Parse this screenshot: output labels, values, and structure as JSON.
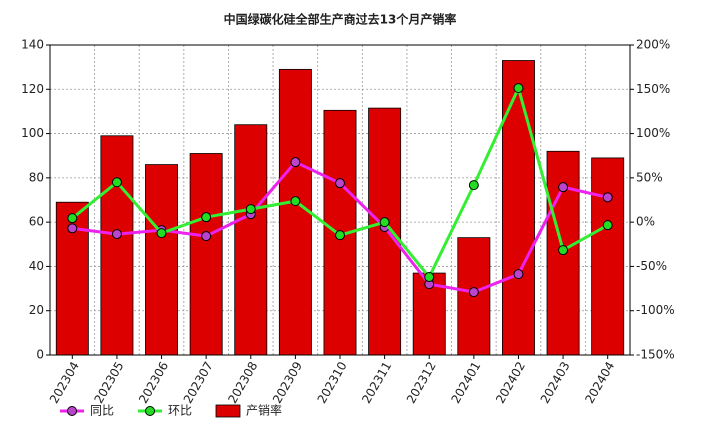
{
  "chart_data": {
    "type": "bar",
    "title": "中国绿碳化硅全部生产商过去13个月产销率",
    "categories": [
      "202304",
      "202305",
      "202306",
      "202307",
      "202308",
      "202309",
      "202310",
      "202311",
      "202312",
      "202401",
      "202402",
      "202403",
      "202404"
    ],
    "series": [
      {
        "name": "同比",
        "type": "line",
        "axis": "y2",
        "color": "#ee22ee",
        "marker": "#bb44cc",
        "values": [
          -7,
          -13.5,
          -9,
          -15.8,
          9,
          67.7,
          44,
          -5.6,
          -70,
          -79,
          -58.7,
          39.5,
          28
        ]
      },
      {
        "name": "环比",
        "type": "line",
        "axis": "y2",
        "color": "#33ee33",
        "marker": "#22dd22",
        "values": [
          4.5,
          45,
          -12.4,
          5.6,
          14.7,
          23.7,
          -14.7,
          0,
          -62,
          41.8,
          151.3,
          -31.6,
          -3.4
        ]
      },
      {
        "name": "产销率",
        "type": "bar",
        "color": "#dd0000",
        "values": [
          69,
          99,
          86,
          91,
          104,
          129,
          110.5,
          111.5,
          37,
          53,
          133,
          92,
          89
        ]
      }
    ],
    "ylim": [
      0,
      140
    ],
    "yticks": [
      0,
      20,
      40,
      60,
      80,
      100,
      120,
      140
    ],
    "y2lim": [
      -150,
      200
    ],
    "y2ticks": [
      {
        "value": -150,
        "label": "-150%"
      },
      {
        "value": -100,
        "label": "-100%"
      },
      {
        "value": -50,
        "label": "-50%"
      },
      {
        "value": 0,
        "label": "0%"
      },
      {
        "value": 50,
        "label": "50%"
      },
      {
        "value": 100,
        "label": "100%"
      },
      {
        "value": 150,
        "label": "150%"
      },
      {
        "value": 200,
        "label": "200%"
      }
    ],
    "grid": true
  }
}
